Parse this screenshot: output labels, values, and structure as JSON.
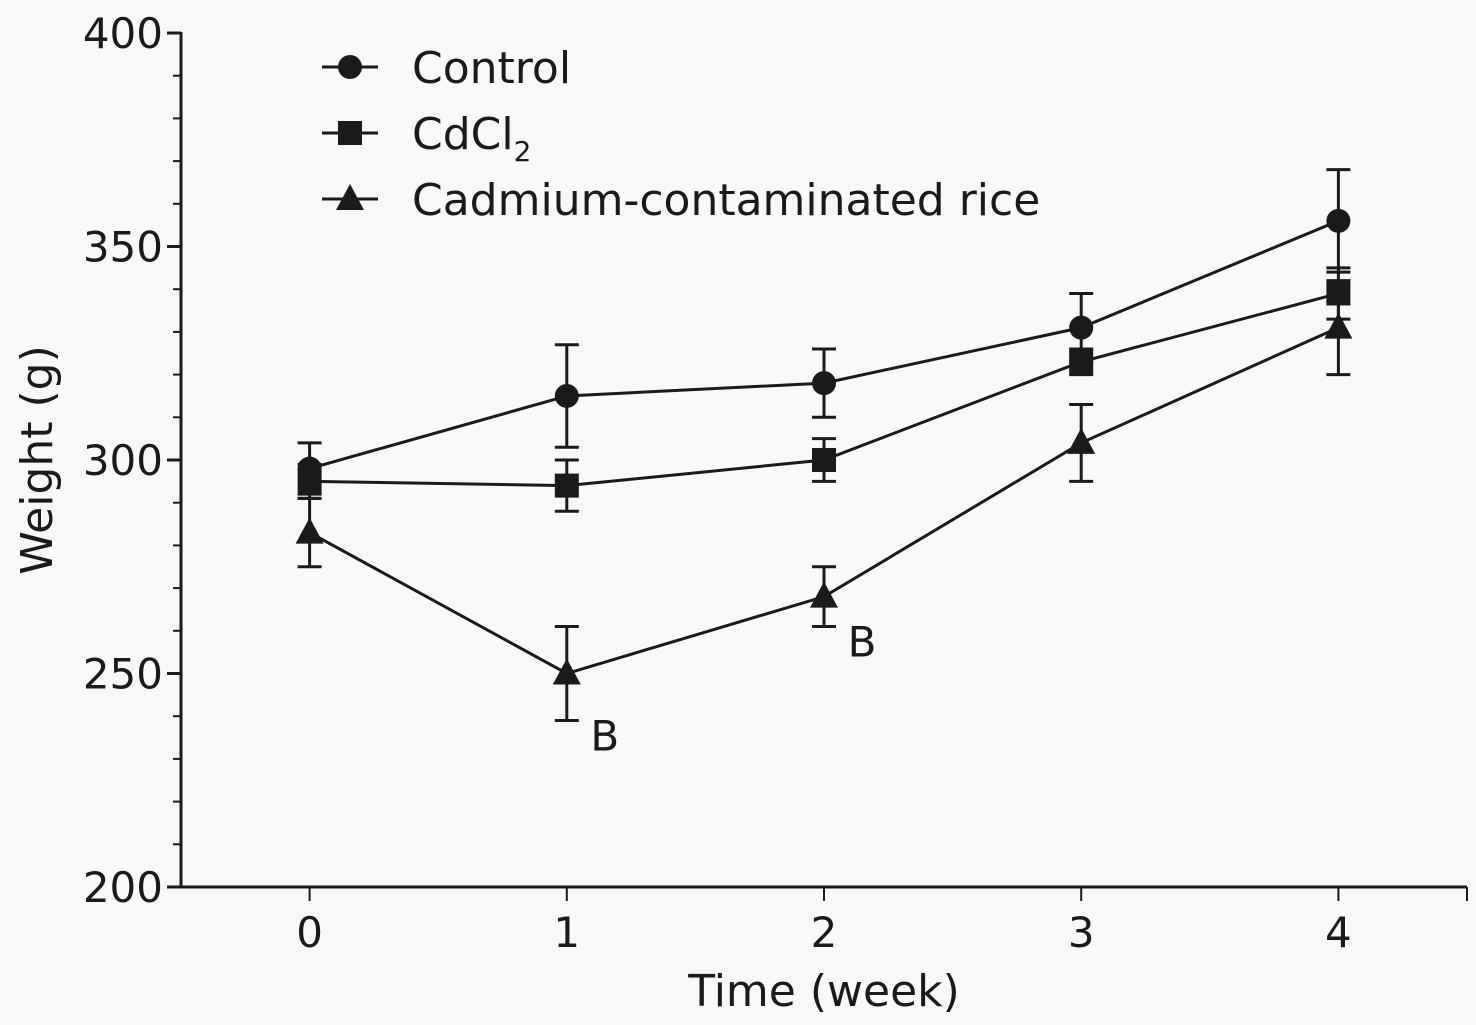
{
  "chart_data": {
    "type": "line",
    "title": "",
    "xlabel": "Time (week)",
    "ylabel": "Weight (g)",
    "x": [
      0,
      1,
      2,
      3,
      4
    ],
    "xticks": [
      "0",
      "1",
      "2",
      "3",
      "4"
    ],
    "xlim": [
      -0.5,
      4.5
    ],
    "yticks": [
      "200",
      "250",
      "300",
      "350",
      "400"
    ],
    "ylim": [
      200,
      400
    ],
    "y_minor_step": 10,
    "grid": false,
    "legend_position": "top-left",
    "series": [
      {
        "name": "Control",
        "subscript": "",
        "marker": "circle",
        "values": [
          298,
          315,
          318,
          331,
          356
        ],
        "errors": [
          6,
          12,
          8,
          8,
          12
        ]
      },
      {
        "name": "CdCl",
        "subscript": "2",
        "marker": "square",
        "values": [
          295,
          294,
          300,
          323,
          339
        ],
        "errors": [
          4,
          6,
          5,
          3,
          6
        ]
      },
      {
        "name": "Cadmium-contaminated rice",
        "subscript": "",
        "marker": "triangle",
        "values": [
          283,
          250,
          268,
          304,
          331
        ],
        "errors": [
          8,
          11,
          7,
          9,
          11
        ]
      }
    ],
    "annotations": [
      {
        "text": "B",
        "series": 2,
        "x": 1
      },
      {
        "text": "B",
        "series": 2,
        "x": 2
      }
    ],
    "color": "#1a1a1a"
  }
}
